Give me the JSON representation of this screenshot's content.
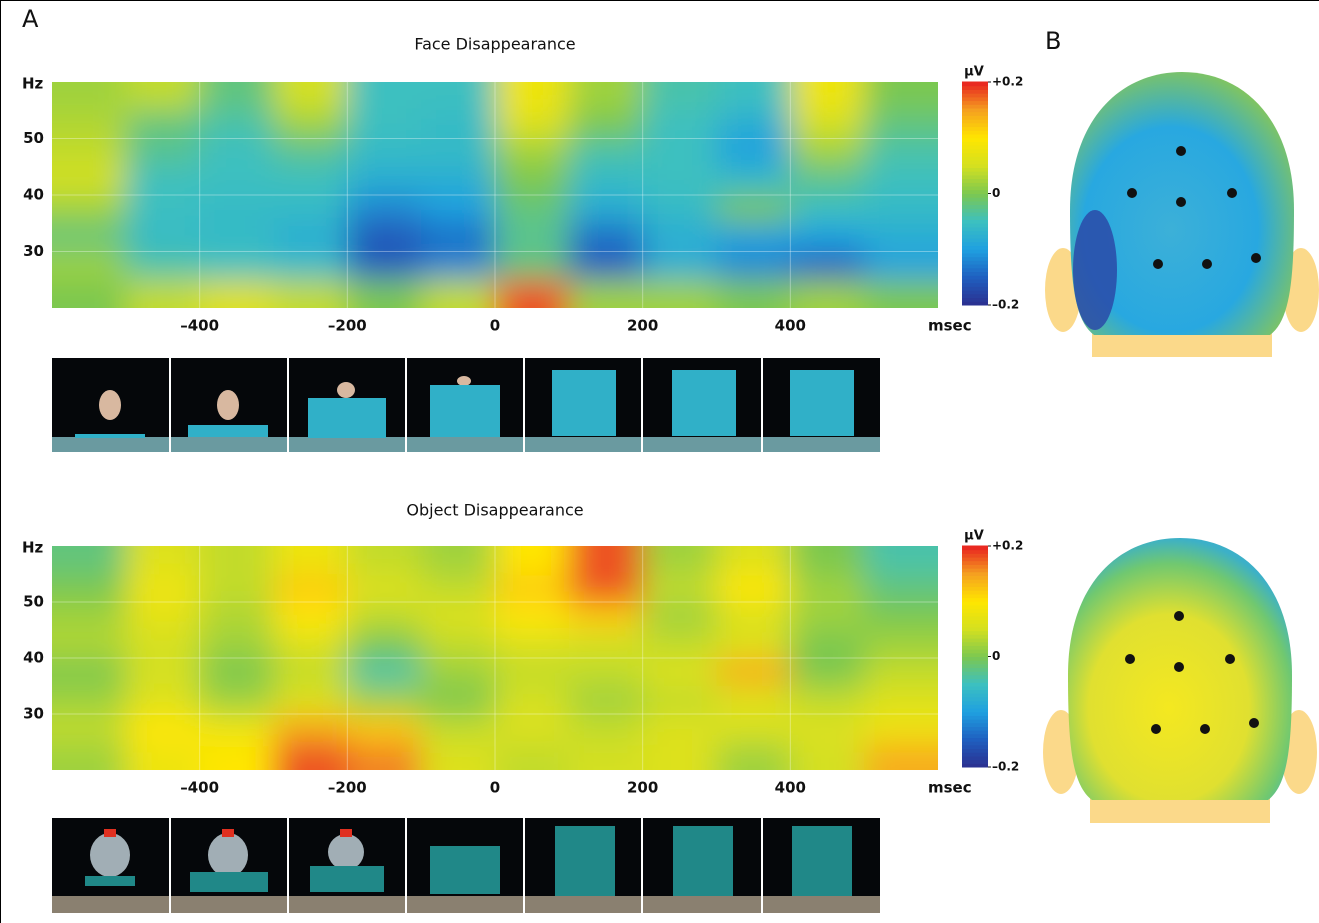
{
  "panel_labels": {
    "a": "A",
    "b": "B"
  },
  "chart_data": [
    {
      "type": "heatmap",
      "title": "Face Disappearance",
      "y_label": "Hz",
      "x_label": "msec",
      "colorbar_label": "µV",
      "x": [
        -550,
        -450,
        -350,
        -250,
        -150,
        -50,
        50,
        150,
        250,
        350,
        450,
        550
      ],
      "y": [
        57.5,
        52.5,
        47.5,
        42.5,
        37.5,
        32.5,
        27.5,
        22.5
      ],
      "values": [
        [
          0.02,
          0.04,
          -0.02,
          0.05,
          -0.05,
          -0.05,
          0.08,
          0.02,
          -0.04,
          -0.05,
          0.08,
          0.0
        ],
        [
          0.03,
          -0.02,
          -0.04,
          0.02,
          -0.05,
          -0.06,
          0.06,
          0.0,
          -0.05,
          -0.08,
          0.05,
          -0.02
        ],
        [
          0.04,
          -0.03,
          -0.05,
          -0.03,
          -0.06,
          -0.06,
          0.02,
          -0.04,
          -0.05,
          -0.1,
          0.02,
          -0.04
        ],
        [
          0.05,
          -0.05,
          -0.05,
          -0.05,
          -0.08,
          -0.08,
          0.0,
          -0.06,
          -0.05,
          -0.06,
          -0.03,
          -0.05
        ],
        [
          0.02,
          -0.05,
          -0.06,
          -0.06,
          -0.12,
          -0.1,
          -0.02,
          -0.08,
          -0.06,
          0.0,
          -0.05,
          -0.06
        ],
        [
          -0.02,
          -0.06,
          -0.06,
          -0.08,
          -0.16,
          -0.14,
          -0.03,
          -0.14,
          -0.08,
          -0.1,
          -0.1,
          -0.08
        ],
        [
          0.02,
          -0.04,
          -0.05,
          -0.06,
          -0.15,
          -0.12,
          -0.02,
          -0.15,
          -0.08,
          -0.12,
          -0.15,
          -0.1
        ],
        [
          0.0,
          0.04,
          0.06,
          0.04,
          0.0,
          0.04,
          0.18,
          0.02,
          0.02,
          0.0,
          0.02,
          0.0
        ]
      ],
      "xlim": [
        -600,
        600
      ],
      "ylim": [
        20,
        60
      ],
      "xticks": [
        {
          "value": -400,
          "label": "–400"
        },
        {
          "value": -200,
          "label": "–200"
        },
        0,
        200,
        400
      ],
      "yticks": [
        30,
        40,
        50
      ],
      "vlim": [
        -0.2,
        0.2
      ],
      "colorbar_ticks": [
        {
          "value": 0.2,
          "label": "+0.2"
        },
        0,
        {
          "value": -0.2,
          "label": "–0.2"
        }
      ],
      "colormap": [
        "#2b2f8f",
        "#1f5fc0",
        "#1fa0e0",
        "#3cc0c0",
        "#7cc850",
        "#d4e020",
        "#ffe600",
        "#f5a020",
        "#e82020"
      ],
      "grid": true
    },
    {
      "type": "heatmap",
      "title": "Object Disappearance",
      "y_label": "Hz",
      "x_label": "msec",
      "colorbar_label": "µV",
      "x": [
        -550,
        -450,
        -350,
        -250,
        -150,
        -50,
        50,
        150,
        250,
        350,
        450,
        550
      ],
      "y": [
        57.5,
        52.5,
        47.5,
        42.5,
        37.5,
        32.5,
        27.5,
        22.5
      ],
      "values": [
        [
          -0.02,
          0.06,
          0.04,
          0.08,
          0.04,
          0.02,
          0.1,
          0.18,
          0.02,
          0.06,
          0.0,
          -0.04
        ],
        [
          0.0,
          0.08,
          0.04,
          0.12,
          0.06,
          0.04,
          0.12,
          0.18,
          0.04,
          0.1,
          0.02,
          -0.02
        ],
        [
          0.02,
          0.07,
          0.03,
          0.1,
          0.04,
          0.06,
          0.1,
          0.12,
          0.02,
          0.06,
          0.02,
          0.0
        ],
        [
          0.03,
          0.05,
          0.02,
          0.06,
          0.0,
          0.04,
          0.06,
          0.05,
          0.04,
          0.06,
          0.0,
          0.02
        ],
        [
          0.0,
          0.05,
          0.0,
          0.04,
          -0.04,
          0.02,
          0.04,
          0.04,
          0.06,
          0.14,
          0.0,
          0.04
        ],
        [
          0.02,
          0.06,
          0.02,
          0.06,
          0.02,
          0.0,
          0.05,
          0.02,
          0.04,
          0.06,
          0.04,
          0.06
        ],
        [
          0.04,
          0.1,
          0.08,
          0.14,
          0.12,
          0.04,
          0.06,
          0.04,
          0.06,
          0.06,
          0.06,
          0.08
        ],
        [
          0.02,
          0.08,
          0.1,
          0.18,
          0.16,
          0.06,
          0.04,
          0.05,
          0.06,
          0.02,
          0.05,
          0.14
        ]
      ],
      "xlim": [
        -600,
        600
      ],
      "ylim": [
        20,
        60
      ],
      "xticks": [
        {
          "value": -400,
          "label": "–400"
        },
        {
          "value": -200,
          "label": "–200"
        },
        0,
        200,
        400
      ],
      "yticks": [
        30,
        40,
        50
      ],
      "vlim": [
        -0.2,
        0.2
      ],
      "colorbar_ticks": [
        {
          "value": 0.2,
          "label": "+0.2"
        },
        0,
        {
          "value": -0.2,
          "label": "–0.2"
        }
      ],
      "colormap": [
        "#2b2f8f",
        "#1f5fc0",
        "#1fa0e0",
        "#3cc0c0",
        "#7cc850",
        "#d4e020",
        "#ffe600",
        "#f5a020",
        "#e82020"
      ],
      "grid": true
    }
  ]
}
